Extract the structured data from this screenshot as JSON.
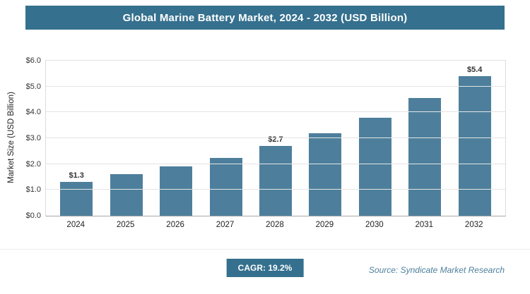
{
  "header": {
    "title": "Global Marine Battery Market, 2024 - 2032 (USD Billion)"
  },
  "chart_data": {
    "type": "bar",
    "title": "Global Marine Battery Market, 2024 - 2032 (USD Billion)",
    "categories": [
      "2024",
      "2025",
      "2026",
      "2027",
      "2028",
      "2029",
      "2030",
      "2031",
      "2032"
    ],
    "values": [
      1.3,
      1.6,
      1.9,
      2.25,
      2.7,
      3.2,
      3.8,
      4.55,
      5.4
    ],
    "bar_labels": [
      "$1.3",
      "",
      "",
      "",
      "$2.7",
      "",
      "",
      "",
      "$5.4"
    ],
    "xlabel": "",
    "ylabel": "Market Size (USD Billion)",
    "ylim": [
      0,
      6
    ],
    "yticks": [
      "$0.0",
      "$1.0",
      "$2.0",
      "$3.0",
      "$4.0",
      "$5.0",
      "$6.0"
    ],
    "grid": true,
    "legend": "none",
    "bar_color": "#4d7f9c"
  },
  "footer": {
    "cagr_label": "CAGR: 19.2%",
    "source": "Source: Syndicate Market Research"
  },
  "colors": {
    "header_bg": "#35708e",
    "bar": "#4d7f9c",
    "badge_bg": "#35708e",
    "source_text": "#4d7f9c",
    "gridline": "#e4e4e4"
  }
}
